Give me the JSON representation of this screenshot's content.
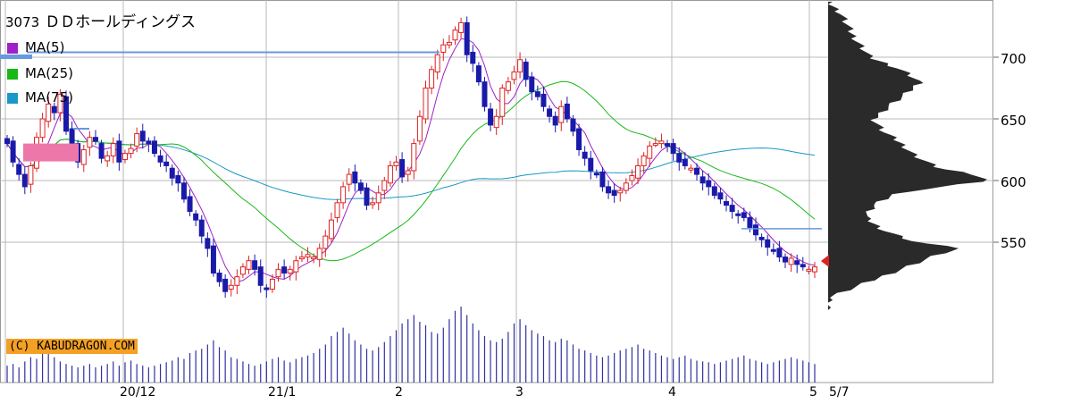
{
  "stock": {
    "code": "3073",
    "name": "ＤＤホールディングス"
  },
  "legend": [
    {
      "label": "MA(5)",
      "color": "#a020c8"
    },
    {
      "label": "MA(25)",
      "color": "#18b818"
    },
    {
      "label": "MA(75)",
      "color": "#1898c8"
    }
  ],
  "copyright": "(C) KABUDRAGON.COM",
  "chart_data": {
    "type": "candlestick",
    "y_ticks": [
      "700",
      "650",
      "600",
      "550"
    ],
    "x_ticks": [
      "20/12",
      "21/1",
      "2",
      "3",
      "4",
      "5",
      "5/7"
    ],
    "ylim": [
      495,
      745
    ],
    "grid": true,
    "up_color": "#dd2222",
    "down_color": "#1a1aaa",
    "ma_colors": {
      "ma5": "#a020c8",
      "ma25": "#18b818",
      "ma75": "#1898c8"
    },
    "closes": [
      630,
      615,
      605,
      595,
      612,
      635,
      650,
      662,
      655,
      670,
      640,
      630,
      615,
      625,
      635,
      632,
      618,
      620,
      630,
      615,
      622,
      626,
      638,
      632,
      630,
      622,
      615,
      612,
      602,
      598,
      585,
      575,
      568,
      555,
      545,
      525,
      518,
      510,
      515,
      522,
      530,
      535,
      528,
      515,
      512,
      520,
      528,
      525,
      528,
      535,
      538,
      540,
      538,
      545,
      555,
      568,
      582,
      595,
      605,
      598,
      592,
      580,
      582,
      590,
      600,
      612,
      615,
      603,
      608,
      630,
      652,
      675,
      690,
      702,
      710,
      712,
      722,
      728,
      702,
      695,
      680,
      660,
      645,
      652,
      675,
      680,
      688,
      698,
      682,
      672,
      668,
      660,
      652,
      645,
      660,
      650,
      640,
      625,
      618,
      608,
      605,
      595,
      590,
      588,
      592,
      598,
      604,
      612,
      620,
      628,
      630,
      632,
      628,
      622,
      615,
      612,
      610,
      605,
      598,
      595,
      588,
      585,
      580,
      575,
      572,
      570,
      562,
      556,
      552,
      546,
      543,
      538,
      534,
      537,
      532,
      530,
      528,
      530
    ],
    "volume": [
      20,
      22,
      18,
      25,
      30,
      28,
      40,
      35,
      30,
      25,
      22,
      20,
      18,
      20,
      22,
      18,
      20,
      22,
      25,
      20,
      24,
      26,
      22,
      20,
      18,
      20,
      22,
      24,
      26,
      30,
      28,
      35,
      38,
      40,
      45,
      50,
      42,
      38,
      30,
      28,
      25,
      22,
      20,
      22,
      25,
      28,
      30,
      26,
      24,
      28,
      30,
      32,
      35,
      40,
      45,
      55,
      60,
      65,
      58,
      50,
      45,
      40,
      38,
      42,
      48,
      55,
      62,
      70,
      75,
      80,
      72,
      68,
      60,
      58,
      65,
      75,
      85,
      90,
      80,
      70,
      62,
      55,
      50,
      48,
      52,
      60,
      70,
      75,
      68,
      62,
      58,
      55,
      50,
      48,
      52,
      50,
      45,
      40,
      38,
      35,
      32,
      30,
      32,
      35,
      38,
      40,
      42,
      45,
      40,
      38,
      35,
      32,
      30,
      28,
      30,
      32,
      28,
      26,
      25,
      24,
      22,
      24,
      26,
      28,
      30,
      32,
      28,
      26,
      24,
      22,
      24,
      26,
      28,
      30,
      28,
      26,
      24,
      22
    ],
    "profile": [
      [
        540,
        120
      ],
      [
        545,
        145
      ],
      [
        550,
        95
      ],
      [
        560,
        60
      ],
      [
        570,
        40
      ],
      [
        580,
        50
      ],
      [
        590,
        75
      ],
      [
        600,
        175
      ],
      [
        605,
        160
      ],
      [
        610,
        120
      ],
      [
        620,
        95
      ],
      [
        630,
        80
      ],
      [
        640,
        60
      ],
      [
        650,
        50
      ],
      [
        660,
        65
      ],
      [
        670,
        85
      ],
      [
        680,
        100
      ],
      [
        690,
        80
      ],
      [
        700,
        45
      ],
      [
        710,
        35
      ],
      [
        720,
        25
      ],
      [
        735,
        15
      ]
    ]
  }
}
